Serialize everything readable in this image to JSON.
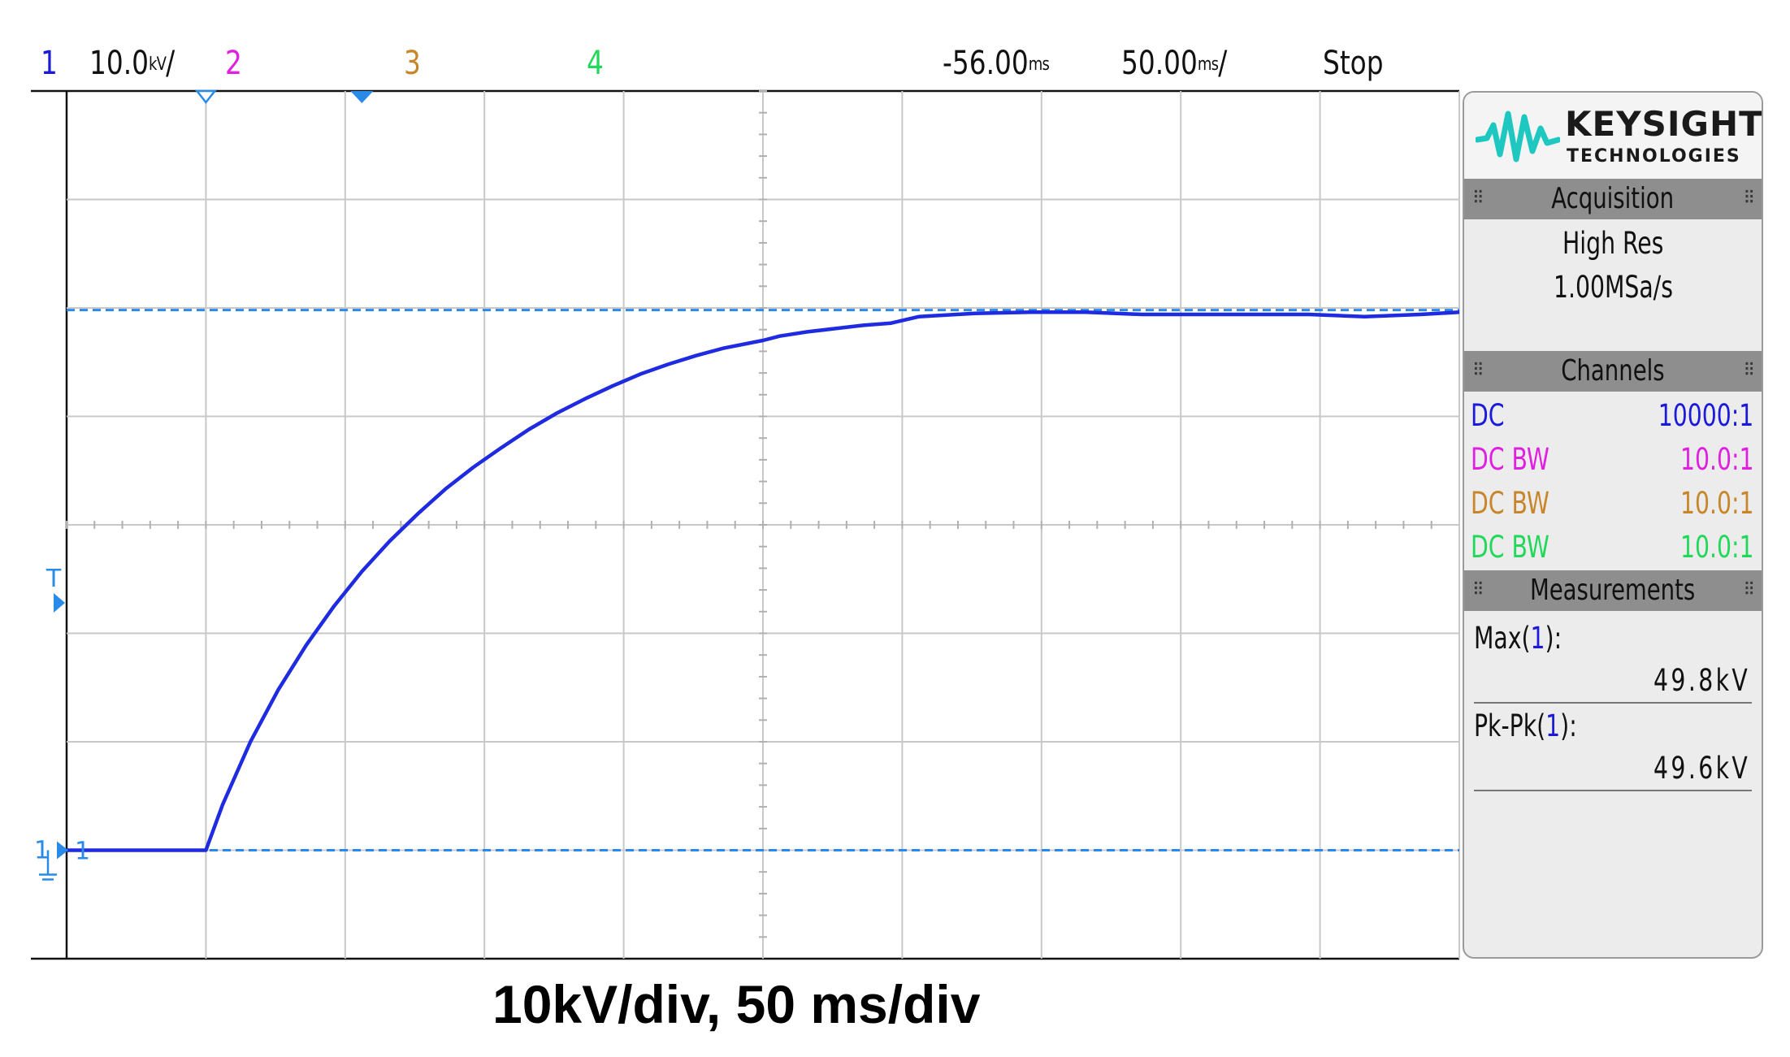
{
  "top_bar": {
    "ch1_num": "1",
    "ch1_scale": "10.0",
    "ch1_unit": "kV",
    "ch1_div": "/",
    "ch2_num": "2",
    "ch3_num": "3",
    "ch4_num": "4",
    "time_offset": "-56.00",
    "time_offset_unit": "ms",
    "time_scale": "50.00",
    "time_scale_unit": "ms",
    "time_scale_div": "/",
    "run_state": "Stop"
  },
  "colors": {
    "ch1": "#1a1ad8",
    "ch2": "#e020e0",
    "ch3": "#c8862a",
    "ch4": "#22d85a",
    "trace": "#1e2be0",
    "marker": "#2a8ae8",
    "logo": "#1ec8c0"
  },
  "screen_markers": {
    "trigger_label": "T",
    "ground_label": "1",
    "ch1_label": "1"
  },
  "panel": {
    "logo_name": "KEYSIGHT",
    "logo_sub": "TECHNOLOGIES",
    "acquisition": {
      "title": "Acquisition",
      "mode": "High Res",
      "rate": "1.00MSa/s"
    },
    "channels": {
      "title": "Channels",
      "rows": [
        {
          "coupling": "DC",
          "probe": "10000:1"
        },
        {
          "coupling": "DC BW",
          "probe": "10.0:1"
        },
        {
          "coupling": "DC BW",
          "probe": "10.0:1"
        },
        {
          "coupling": "DC BW",
          "probe": "10.0:1"
        }
      ]
    },
    "measurements": {
      "title": "Measurements",
      "items": [
        {
          "label": "Max(",
          "ch": "1",
          "close": "):",
          "value": "49.8kV"
        },
        {
          "label": "Pk-Pk(",
          "ch": "1",
          "close": "):",
          "value": "49.6kV"
        }
      ]
    }
  },
  "caption": "10kV/div, 50 ms/div",
  "chart_data": {
    "type": "line",
    "x_unit": "ms",
    "y_unit": "kV",
    "xlim": [
      -306,
      194
    ],
    "ylim": [
      -10,
      70
    ],
    "grid": true,
    "divisions": {
      "x": 10,
      "y": 8
    },
    "cursor_lines_y": [
      0,
      49.8
    ],
    "series": [
      {
        "x": [
          -306,
          -280,
          -256,
          -250,
          -240,
          -230,
          -220,
          -210,
          -200,
          -190,
          -180,
          -170,
          -160,
          -150,
          -140,
          -130,
          -120,
          -110,
          -100,
          -90,
          -80,
          -70,
          -56,
          -50,
          -40,
          -30,
          -20,
          -10,
          0,
          20,
          40,
          60,
          80,
          100,
          120,
          140,
          160,
          180,
          194
        ],
        "y": [
          0,
          0,
          0,
          4.2,
          10.0,
          14.8,
          18.9,
          22.5,
          25.7,
          28.5,
          31.0,
          33.3,
          35.3,
          37.1,
          38.8,
          40.3,
          41.6,
          42.8,
          43.9,
          44.8,
          45.6,
          46.3,
          47.0,
          47.4,
          47.8,
          48.1,
          48.4,
          48.6,
          49.2,
          49.5,
          49.6,
          49.6,
          49.4,
          49.4,
          49.4,
          49.4,
          49.2,
          49.4,
          49.6
        ]
      }
    ]
  }
}
